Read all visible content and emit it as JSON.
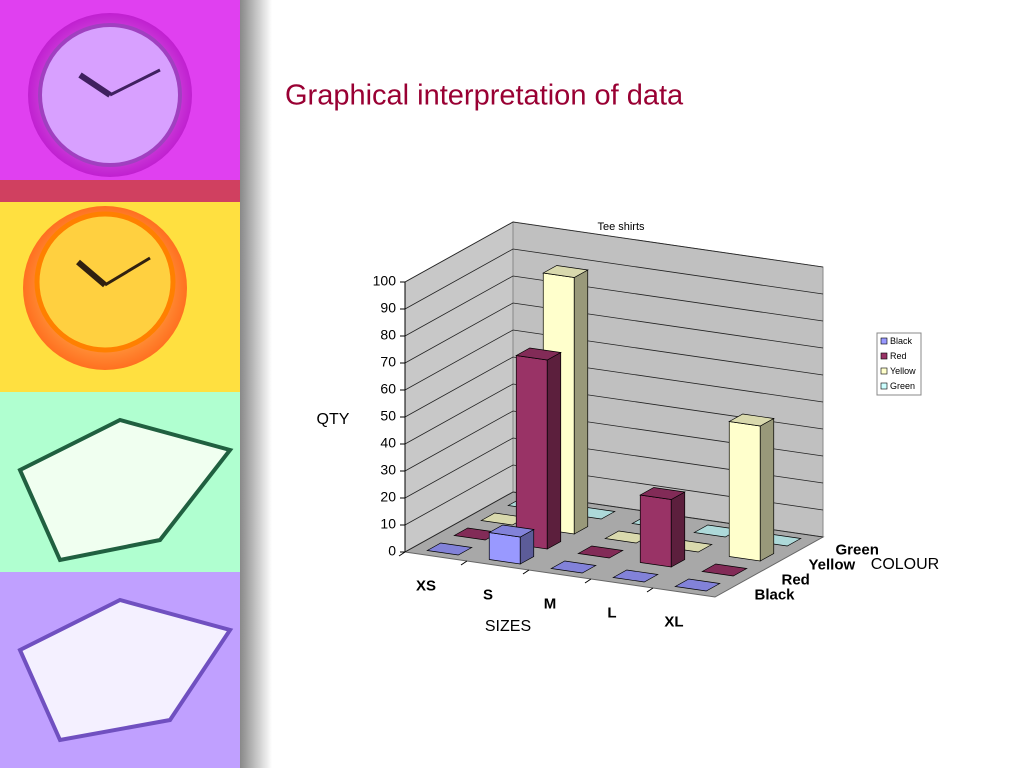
{
  "slide": {
    "title": "Graphical interpretation of data"
  },
  "chart_data": {
    "type": "bar3d",
    "title": "Tee shirts",
    "categories": [
      "XS",
      "S",
      "M",
      "L",
      "XL"
    ],
    "series": [
      {
        "name": "Black",
        "color": "#9999ff",
        "values": [
          0,
          10,
          0,
          0,
          0
        ]
      },
      {
        "name": "Red",
        "color": "#993366",
        "values": [
          0,
          70,
          0,
          25,
          0
        ]
      },
      {
        "name": "Yellow",
        "color": "#ffffcc",
        "values": [
          0,
          95,
          0,
          0,
          50
        ]
      },
      {
        "name": "Green",
        "color": "#ccffff",
        "values": [
          0,
          0,
          0,
          0,
          0
        ]
      }
    ],
    "x_label": "SIZES",
    "y_label": "QTY",
    "z_label": "COLOUR",
    "ylim": [
      0,
      100
    ],
    "yticks": [
      0,
      10,
      20,
      30,
      40,
      50,
      60,
      70,
      80,
      90,
      100
    ],
    "grid": true,
    "legend": "right"
  }
}
